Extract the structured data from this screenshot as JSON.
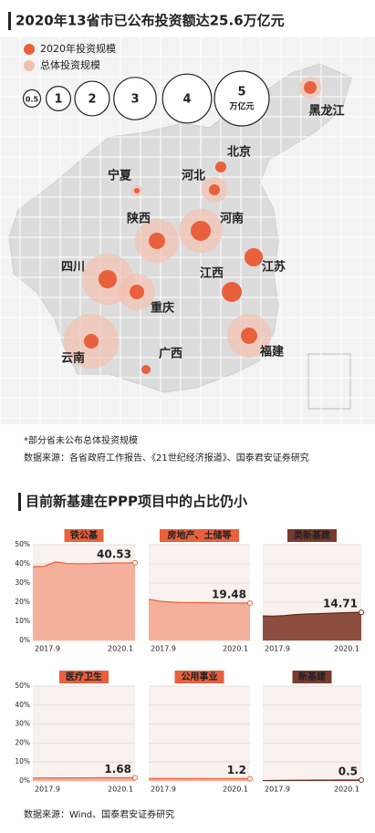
{
  "chart_data": [
    {
      "type": "bubble_map",
      "title": "2020年13省市已公布投资额达25.6万亿元",
      "categories": [
        "黑龙江",
        "北京",
        "河北",
        "宁夏",
        "陕西",
        "河南",
        "江苏",
        "四川",
        "重庆",
        "江西",
        "云南",
        "广西",
        "福建"
      ],
      "series": [
        {
          "name": "2020年投资规模",
          "color": "#e8603c",
          "values": [
            0.27,
            0.2,
            0.2,
            0.05,
            0.45,
            0.67,
            0.56,
            0.56,
            0.36,
            0.67,
            0.36,
            0.14,
            0.45
          ]
        },
        {
          "name": "总体投资规模",
          "color": "#f3c0b0",
          "values": [
            0.8,
            null,
            1.1,
            0.2,
            3.2,
            3.2,
            null,
            4.4,
            2.2,
            null,
            5,
            null,
            3.2
          ]
        }
      ],
      "size_legend": {
        "values": [
          0.5,
          1,
          2,
          3,
          4,
          5
        ],
        "unit": "万亿元"
      },
      "notes": [
        "*部分省未公布总体投资规模",
        "数据来源：各省政府工作报告、《21世纪经济报道》、国泰君安证券研究"
      ]
    },
    {
      "type": "small_multiples",
      "title": "目前新基建在PPP项目中的占比仍小",
      "ylim": [
        0,
        50
      ],
      "yticks": [
        {
          "value": 0,
          "label": "0%"
        },
        {
          "value": 10,
          "label": "10%"
        },
        {
          "value": 20,
          "label": "20%"
        },
        {
          "value": 30,
          "label": "30%"
        },
        {
          "value": 40,
          "label": "40%"
        },
        {
          "value": 50,
          "label": "50%"
        }
      ],
      "categories": [
        "2017.9",
        null,
        null,
        null,
        null,
        null,
        null,
        null,
        null,
        "2020.1"
      ],
      "panels": [
        {
          "title": "铁公基",
          "color": "#e8603c",
          "values": [
            38.5,
            38.7,
            41,
            40.2,
            40,
            40.1,
            40.3,
            40.4,
            40.5,
            40.53
          ]
        },
        {
          "title": "房地产、土储等",
          "color": "#e8603c",
          "values": [
            21.5,
            20.5,
            20,
            19.8,
            19.8,
            19.7,
            19.6,
            19.5,
            19.5,
            19.48
          ]
        },
        {
          "title": "类新基建",
          "color": "#7a3b2e",
          "values": [
            12.8,
            12.7,
            13,
            13.5,
            13.8,
            14,
            14.2,
            14.4,
            14.6,
            14.71
          ]
        },
        {
          "title": "医疗卫生",
          "color": "#e8603c",
          "values": [
            1.6,
            1.6,
            1.62,
            1.64,
            1.65,
            1.66,
            1.67,
            1.67,
            1.68,
            1.68
          ]
        },
        {
          "title": "公用事业",
          "color": "#e8603c",
          "values": [
            1.3,
            1.28,
            1.25,
            1.23,
            1.22,
            1.21,
            1.2,
            1.2,
            1.2,
            1.2
          ]
        },
        {
          "title": "新基建",
          "color": "#7a3b2e",
          "values": [
            0.2,
            0.25,
            0.3,
            0.35,
            0.4,
            0.42,
            0.45,
            0.47,
            0.49,
            0.5
          ]
        }
      ],
      "source": "数据来源：Wind、国泰君安证券研究"
    }
  ]
}
